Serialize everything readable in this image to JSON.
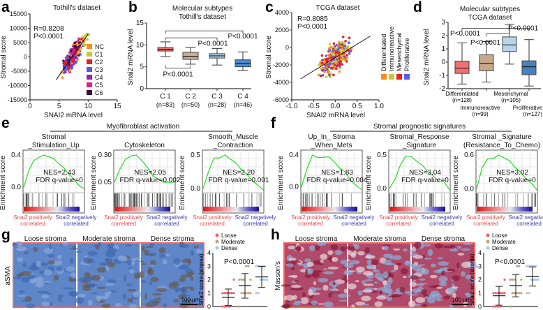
{
  "panels": {
    "a": {
      "label": "a",
      "title": "Tothill's dataset",
      "r": "R=0.8208",
      "p": "P<0.0001",
      "xlabel": "SNAI2 mRNA level",
      "ylabel": "Stromal score",
      "xticks": [
        "0",
        "5",
        "10",
        "15"
      ],
      "yticks": [
        "15000",
        "10000",
        "5000",
        "0",
        "-5000",
        "-10000",
        "-15000"
      ],
      "legend": [
        {
          "name": "NC",
          "color": "#ff8c1a"
        },
        {
          "name": "C1",
          "color": "#c8c83a"
        },
        {
          "name": "C2",
          "color": "#ee1c24"
        },
        {
          "name": "C3",
          "color": "#5a5ae6"
        },
        {
          "name": "C4",
          "color": "#a020b0"
        },
        {
          "name": "C5",
          "color": "#e0208a"
        },
        {
          "name": "C6",
          "color": "#3a0a3a"
        }
      ]
    },
    "b": {
      "label": "b",
      "title1": "Molecular subtypes",
      "title2": "Tothill's dataset",
      "ylabel": "Snai2 mRNA level",
      "yticks": [
        "15",
        "10",
        "5",
        "0"
      ],
      "groups": [
        {
          "name": "C 1",
          "n": "(n=83)"
        },
        {
          "name": "C 2",
          "n": "(n=50)"
        },
        {
          "name": "C 3",
          "n": "(n=28)"
        },
        {
          "name": "C 4",
          "n": "(n=46)"
        }
      ],
      "p_c1_c4": "P<0.0001",
      "p_c1_c3": "P<0.0001",
      "p_c1_c2": "P<0.0001"
    },
    "c": {
      "label": "c",
      "title": "TCGA dataset",
      "r": "R=0.8085",
      "p": "P<0.0001",
      "xlabel": "SNAI2 mRNA level",
      "ylabel": "Stromal score",
      "xticks": [
        "-1.0",
        "-0.5",
        "0.0",
        "0.5",
        "1.0"
      ],
      "yticks": [
        "4000",
        "2000",
        "0",
        "-2000",
        "-4000",
        "-6000"
      ],
      "legend": [
        {
          "name": "Differentiated",
          "color": "#ff8c1a"
        },
        {
          "name": "Immunoreactive",
          "color": "#c8c83a"
        },
        {
          "name": "Mesenchymal",
          "color": "#ee1c24"
        },
        {
          "name": "Proliferative",
          "color": "#5a5ae6"
        }
      ]
    },
    "d": {
      "label": "d",
      "title1": "Molecular subtypes",
      "title2": "TCGA dataset",
      "ylabel": "Snai2 mRNA level",
      "yticks": [
        "3",
        "2",
        "1",
        "0",
        "-1",
        "-2"
      ],
      "groups": [
        {
          "name": "Differentiated",
          "n": "(n=128)"
        },
        {
          "name": "Immunoreactive",
          "n": "(n=99)"
        },
        {
          "name": "Mesenchymal",
          "n": "(n=105)"
        },
        {
          "name": "Proliferative",
          "n": "(n=127)"
        }
      ],
      "p1": "P<0.0001",
      "p2": "P<0.0001",
      "p3": "P<0.0001"
    },
    "e": {
      "label": "e",
      "header": "Myofibroblast activation",
      "ylabel": "Enrichment score",
      "pos": "Snai2 positively",
      "neg": "Snai2 negatively",
      "corr": "correlated",
      "sets": [
        {
          "t1": "Stromal",
          "t2": "_Stimulation_Up",
          "nes": "NES=2.43",
          "fdr": "FDR q-value=0",
          "yt": [
            "0.4",
            "0.0"
          ]
        },
        {
          "t1": "",
          "t2": "Cytoskeleton",
          "nes": "NES=2.05",
          "fdr": "FDR q-value=0.002",
          "yt": [
            "0.30",
            "0.05"
          ]
        },
        {
          "t1": "Smooth_Muscle",
          "t2": "_Contraction",
          "nes": "NES=2.20",
          "fdr": "FDR q-value=0.001",
          "yt": [
            "0.5",
            "0.0"
          ]
        }
      ]
    },
    "f": {
      "label": "f",
      "header": "Stromal prognostic signatures",
      "ylabel": "Enrichment score",
      "pos": "Snai2 positively",
      "neg": "Snai2 negatively",
      "corr": "correlated",
      "sets": [
        {
          "t1": "Up_In_ Stroma",
          "t2": "_When_Mets",
          "nes": "NES=1.83",
          "fdr": "FDR q-value=0.004",
          "yt": [
            "0.4",
            "0.0"
          ]
        },
        {
          "t1": "Stromal_Response",
          "t2": "_Signature",
          "nes": "NES=3.04",
          "fdr": "FDR q-value=0",
          "yt": [
            "0.5",
            "0.0"
          ]
        },
        {
          "t1": "Stromal _Signature",
          "t2": "(Resistance_To_Chemo)",
          "nes": "NES=3.02",
          "fdr": "FDR q-value=0",
          "yt": [
            "0.6",
            "0.0"
          ]
        }
      ]
    },
    "g": {
      "label": "g",
      "stain": "aSMA",
      "cols": [
        "Loose stroma",
        "Moderate stroma",
        "Dense stroma"
      ],
      "scale": "100 μm",
      "ylabel": "Snai2 score (stroma)",
      "p": "P<0.0001",
      "yticks": [
        "4",
        "3",
        "2",
        "1",
        "0"
      ],
      "legend": [
        {
          "name": "Loose",
          "color": "#f4606a"
        },
        {
          "name": "Moderate",
          "color": "#c0a080"
        },
        {
          "name": "Dense",
          "color": "#a8c8e8"
        }
      ]
    },
    "h": {
      "label": "h",
      "stain": "Masson's",
      "cols": [
        "Loose stroma",
        "Moderate stroma",
        "Dense stroma"
      ],
      "scale": "100 μm",
      "ylabel": "Snai2 score (stroma)",
      "p": "P<0.0001",
      "yticks": [
        "4",
        "3",
        "2",
        "1",
        "0"
      ],
      "legend": [
        {
          "name": "Loose",
          "color": "#f4606a"
        },
        {
          "name": "Moderate",
          "color": "#c0a080"
        },
        {
          "name": "Dense",
          "color": "#a8c8e8"
        }
      ]
    }
  },
  "chart_data": [
    {
      "type": "scatter",
      "panel": "a",
      "xlim": [
        0,
        15
      ],
      "ylim": [
        -15000,
        15000
      ],
      "fit": [
        [
          4.5,
          -8000
        ],
        [
          10,
          8000
        ]
      ]
    },
    {
      "type": "box",
      "panel": "b",
      "ylim": [
        0,
        15
      ],
      "boxes": [
        {
          "min": 7.3,
          "q1": 8.6,
          "med": 9.0,
          "q3": 9.4,
          "max": 10.7,
          "color": "#f07070"
        },
        {
          "min": 5.6,
          "q1": 6.7,
          "med": 7.4,
          "q3": 8.3,
          "max": 9.4,
          "color": "#c8b090"
        },
        {
          "min": 5.4,
          "q1": 7.0,
          "med": 7.5,
          "q3": 8.0,
          "max": 9.2,
          "color": "#b0d0e8"
        },
        {
          "min": 4.2,
          "q1": 5.0,
          "med": 5.8,
          "q3": 6.6,
          "max": 8.4,
          "color": "#4a8ac8"
        }
      ]
    },
    {
      "type": "scatter",
      "panel": "c",
      "xlim": [
        -1,
        1
      ],
      "ylim": [
        -6000,
        4000
      ],
      "fit": [
        [
          -0.8,
          -3600
        ],
        [
          0.8,
          1300
        ]
      ]
    },
    {
      "type": "box",
      "panel": "d",
      "ylim": [
        -2,
        3
      ],
      "boxes": [
        {
          "min": -1.65,
          "q1": -0.85,
          "med": -0.45,
          "q3": 0.08,
          "max": 1.45,
          "color": "#f07070"
        },
        {
          "min": -1.5,
          "q1": -0.65,
          "med": -0.1,
          "q3": 0.55,
          "max": 1.55,
          "color": "#c8a888"
        },
        {
          "min": -0.15,
          "q1": 0.8,
          "med": 1.3,
          "q3": 1.9,
          "max": 2.85,
          "color": "#b8d4ec"
        },
        {
          "min": -1.8,
          "q1": -0.95,
          "med": -0.35,
          "q3": 0.1,
          "max": 1.7,
          "color": "#4a80c0"
        }
      ]
    },
    {
      "type": "line",
      "panel": "e",
      "curves": [
        [
          0,
          0.25,
          0.38,
          0.44,
          0.46,
          0.45,
          0.41,
          0.35,
          0.28,
          0.2,
          0.12,
          0.04,
          -0.02
        ],
        [
          0.05,
          0.18,
          0.26,
          0.3,
          0.3,
          0.26,
          0.19,
          0.12,
          0.08,
          0.06,
          0.05,
          0.06
        ],
        [
          0,
          0.3,
          0.5,
          0.52,
          0.55,
          0.5,
          0.42,
          0.33,
          0.24,
          0.15,
          0.06,
          0.0
        ]
      ]
    },
    {
      "type": "line",
      "panel": "f",
      "curves": [
        [
          0,
          0.25,
          0.42,
          0.4,
          0.39,
          0.41,
          0.33,
          0.26,
          0.2,
          0.1,
          0.02,
          -0.02
        ],
        [
          0,
          0.15,
          0.35,
          0.5,
          0.48,
          0.42,
          0.35,
          0.27,
          0.19,
          0.12,
          0.1,
          0.0
        ],
        [
          0,
          0.4,
          0.53,
          0.55,
          0.6,
          0.57,
          0.5,
          0.4,
          0.3,
          0.2,
          0.1,
          0.0
        ]
      ]
    },
    {
      "type": "scatter",
      "panel": "g",
      "ylim": [
        0,
        4
      ],
      "groups": [
        {
          "mean": 0.68,
          "sd": [
            0.07,
            1.3
          ]
        },
        {
          "mean": 1.55,
          "sd": [
            0.62,
            2.45
          ]
        },
        {
          "mean": 2.2,
          "sd": [
            1.42,
            2.98
          ]
        }
      ]
    },
    {
      "type": "scatter",
      "panel": "h",
      "ylim": [
        0,
        4
      ],
      "groups": [
        {
          "mean": 0.8,
          "sd": [
            0.1,
            1.5
          ]
        },
        {
          "mean": 1.55,
          "sd": [
            0.72,
            2.38
          ]
        },
        {
          "mean": 2.25,
          "sd": [
            1.52,
            2.95
          ]
        }
      ]
    }
  ]
}
